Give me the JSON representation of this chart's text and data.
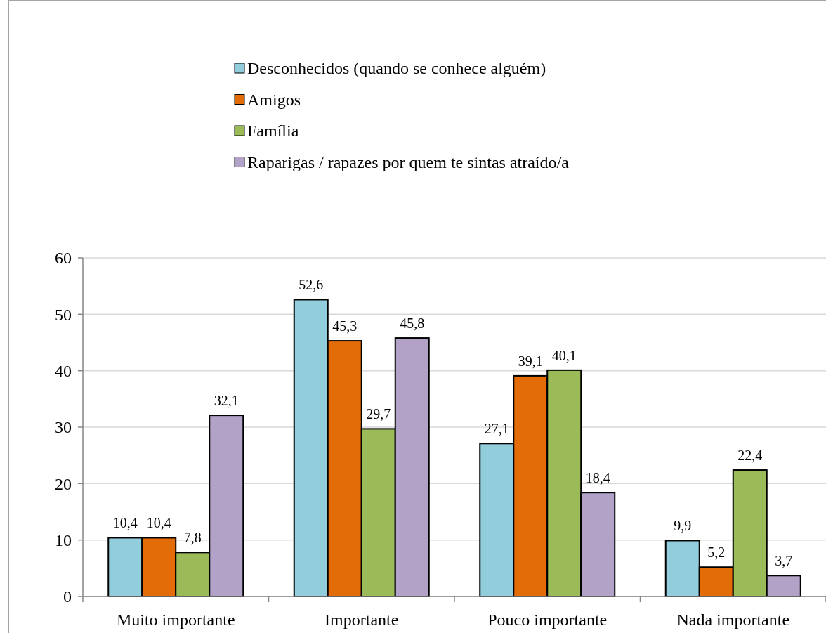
{
  "chart_data": {
    "type": "bar",
    "categories": [
      "Muito importante",
      "Importante",
      "Pouco importante",
      "Nada importante"
    ],
    "series": [
      {
        "name": "Desconhecidos (quando se conhece alguém)",
        "color": "#92cddc",
        "values": [
          10.4,
          52.6,
          27.1,
          9.9
        ],
        "value_labels": [
          "10,4",
          "52,6",
          "27,1",
          "9,9"
        ]
      },
      {
        "name": "Amigos",
        "color": "#e36c09",
        "values": [
          10.4,
          45.3,
          39.1,
          5.2
        ],
        "value_labels": [
          "10,4",
          "45,3",
          "39,1",
          "5,2"
        ]
      },
      {
        "name": "Família",
        "color": "#9bbb59",
        "values": [
          7.8,
          29.7,
          40.1,
          22.4
        ],
        "value_labels": [
          "7,8",
          "29,7",
          "40,1",
          "22,4"
        ]
      },
      {
        "name": "Raparigas / rapazes por quem te sintas atraído/a",
        "color": "#b2a2c7",
        "values": [
          32.1,
          45.8,
          18.4,
          3.7
        ],
        "value_labels": [
          "32,1",
          "45,8",
          "18,4",
          "3,7"
        ]
      }
    ],
    "ylim": [
      0,
      60
    ],
    "yticks": [
      0,
      10,
      20,
      30,
      40,
      50,
      60
    ],
    "grid": "y",
    "legend": "top"
  }
}
